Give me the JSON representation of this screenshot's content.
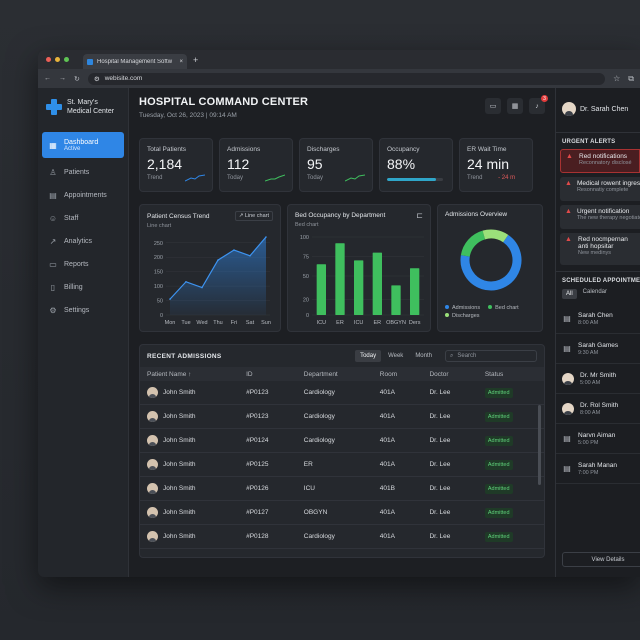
{
  "browser": {
    "tab_title": "Hospital Management Softw",
    "url": "webisite.com"
  },
  "brand": {
    "line1": "St. Mary's",
    "line2": "Medical Center"
  },
  "sidebar": {
    "items": [
      {
        "label": "Dashboard",
        "sub": "Active",
        "icon": "dashboard-icon"
      },
      {
        "label": "Patients",
        "icon": "patients-icon"
      },
      {
        "label": "Appointments",
        "icon": "calendar-icon"
      },
      {
        "label": "Staff",
        "icon": "staff-icon"
      },
      {
        "label": "Analytics",
        "icon": "analytics-icon"
      },
      {
        "label": "Reports",
        "icon": "reports-icon"
      },
      {
        "label": "Billing",
        "icon": "billing-icon"
      },
      {
        "label": "Settings",
        "icon": "settings-icon"
      }
    ]
  },
  "header": {
    "title": "HOSPITAL COMMAND CENTER",
    "date": "Tuesday, Oct 26, 2023",
    "time": "09:14 AM",
    "notification_count": "3"
  },
  "stats": [
    {
      "label": "Total Patients",
      "value": "2,184",
      "foot": "Trend"
    },
    {
      "label": "Admissions",
      "value": "112",
      "foot": "Today"
    },
    {
      "label": "Discharges",
      "value": "95",
      "foot": "Today"
    },
    {
      "label": "Occupancy",
      "value": "88%",
      "foot": "",
      "progress": 0.88
    },
    {
      "label": "ER Wait Time",
      "value": "24 min",
      "foot": "Trend",
      "delta": "- 24 m"
    }
  ],
  "census_chart": {
    "title": "Patient Census Trend",
    "subtitle": "Line chart",
    "chip": "Line chart",
    "chart_data": {
      "type": "area",
      "categories": [
        "Mon",
        "Tue",
        "Wed",
        "Thu",
        "Fri",
        "Sat",
        "Sun"
      ],
      "values": [
        55,
        115,
        95,
        190,
        225,
        205,
        270
      ],
      "yticks": [
        "0",
        "50",
        "100",
        "150",
        "200",
        "250"
      ],
      "ylim": [
        0,
        270
      ]
    }
  },
  "occupancy_chart": {
    "title": "Bed Occupancy by Department",
    "subtitle": "Bed chart",
    "chart_data": {
      "type": "bar",
      "categories": [
        "ICU",
        "ER",
        "ICU",
        "ER",
        "OBGYN",
        "Ders"
      ],
      "values": [
        65,
        92,
        70,
        80,
        38,
        60
      ],
      "yticks": [
        "0",
        "20",
        "50",
        "75",
        "100"
      ],
      "ylim": [
        0,
        100
      ]
    }
  },
  "admissions_chart": {
    "title": "Admissions Overview",
    "chart_data": {
      "type": "pie",
      "labels": [
        "Admissions",
        "Bed chart",
        "Discharges"
      ],
      "values": [
        68,
        18,
        14
      ],
      "colors": [
        "#2f86e6",
        "#3fbf5e",
        "#9be07a"
      ]
    }
  },
  "admissions_table": {
    "title": "RECENT ADMISSIONS",
    "filters": [
      "Today",
      "Week",
      "Month"
    ],
    "search_placeholder": "Search",
    "columns": [
      "Patient Name ↑",
      "ID",
      "Department",
      "Room",
      "Doctor",
      "Status"
    ],
    "rows": [
      [
        "John Smith",
        "#P0123",
        "Cardiology",
        "401A",
        "Dr. Lee",
        "Admitted"
      ],
      [
        "John Smith",
        "#P0123",
        "Cardiology",
        "401A",
        "Dr. Lee",
        "Admitted"
      ],
      [
        "John Smith",
        "#P0124",
        "Cardiology",
        "401A",
        "Dr. Lee",
        "Admitted"
      ],
      [
        "John Smith",
        "#P0125",
        "ER",
        "401A",
        "Dr. Lee",
        "Admitted"
      ],
      [
        "John Smith",
        "#P0126",
        "ICU",
        "401B",
        "Dr. Lee",
        "Admitted"
      ],
      [
        "John Smith",
        "#P0127",
        "OBGYN",
        "401A",
        "Dr. Lee",
        "Admitted"
      ],
      [
        "John Smith",
        "#P0128",
        "Cardiology",
        "401A",
        "Dr. Lee",
        "Admitted"
      ]
    ]
  },
  "right_panel": {
    "user": "Dr. Sarah Chen",
    "alerts_title": "URGENT ALERTS",
    "alerts": [
      {
        "title": "Red notifications",
        "sub": "Reconnatory disclosé",
        "urgent": true
      },
      {
        "title": "Medical rowent ingress",
        "sub": "Resonnatiy complete",
        "urgent": false
      },
      {
        "title": "Urgent notification",
        "sub": "The new therapy negotiate",
        "urgent": false
      },
      {
        "title": "Red nocmpernan",
        "title2": "anti hopsitar",
        "sub": "New medinys",
        "urgent": false
      }
    ],
    "appointments_title": "SCHEDULED APPOINTMENTS",
    "tabs": [
      "All",
      "Calendar"
    ],
    "appointments": [
      {
        "name": "Sarah Chen",
        "time": "8:00 AM",
        "kind": "calendar"
      },
      {
        "name": "Sarah Games",
        "time": "9:30 AM",
        "kind": "calendar"
      },
      {
        "name": "Dr. Mr Smith",
        "time": "5:00 AM",
        "kind": "avatar"
      },
      {
        "name": "Dr. Rol Smith",
        "time": "8:00 AM",
        "kind": "avatar"
      },
      {
        "name": "Narvn Aiman",
        "time": "5:00 PM",
        "kind": "calendar"
      },
      {
        "name": "Sarah Manan",
        "time": "7:00 PM",
        "kind": "calendar"
      }
    ],
    "view_details": "View Details"
  }
}
